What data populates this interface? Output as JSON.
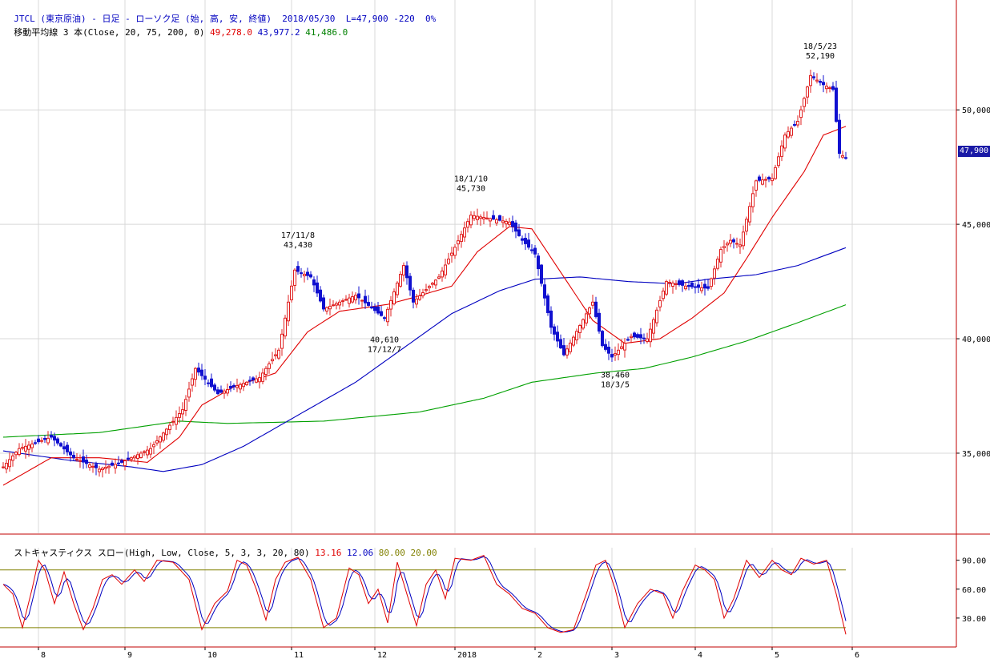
{
  "header": {
    "title": "JTCL (東京原油) - 日足 - ローソク足 (始, 高, 安, 終値)",
    "date": "2018/05/30",
    "last": "L=47,900",
    "change": "-220",
    "pct": "0%"
  },
  "ma_line": {
    "label": "移動平均線 3 本(Close, 20, 75, 200, 0)",
    "v20": "49,278.0",
    "v75": "43,977.2",
    "v200": "41,486.0"
  },
  "stoch_line": {
    "label": "ストキャスティクス スロー(High, Low, Close, 5, 3, 3, 20, 80)",
    "k": "13.16",
    "d": "12.06",
    "upper": "80.00",
    "lower": "20.00"
  },
  "price_tag": "47,900",
  "colors": {
    "up": "#e02020",
    "down": "#1010d0",
    "ma20": "#e00000",
    "ma75": "#0000c0",
    "ma200": "#00a000",
    "stoch_k": "#e00000",
    "stoch_d": "#0000c0",
    "band": "#808000",
    "divider": "#c00000",
    "grid": "#d8d8d8",
    "text_blue": "#0000c0",
    "text_red": "#e00000",
    "text_green": "#008000",
    "text_olive": "#808000"
  },
  "chart_data": {
    "type": "candlestick",
    "y_ticks": [
      "35,000",
      "40,000",
      "45,000",
      "50,000"
    ],
    "ylim": [
      31500,
      54800
    ],
    "x_labels": [
      "8",
      "9",
      "10",
      "11",
      "12",
      "2018",
      "2",
      "3",
      "4",
      "5",
      "6"
    ],
    "keypoints": [
      [
        0,
        34400
      ],
      [
        5,
        35200
      ],
      [
        15,
        35700
      ],
      [
        22,
        34800
      ],
      [
        30,
        34300
      ],
      [
        37,
        34600
      ],
      [
        46,
        35200
      ],
      [
        56,
        36900
      ],
      [
        60,
        38700
      ],
      [
        67,
        37600
      ],
      [
        72,
        37900
      ],
      [
        80,
        38300
      ],
      [
        86,
        39500
      ],
      [
        91,
        43000
      ],
      [
        96,
        42700
      ],
      [
        100,
        41300
      ],
      [
        110,
        41900
      ],
      [
        119,
        40900
      ],
      [
        125,
        43200
      ],
      [
        128,
        41600
      ],
      [
        136,
        42700
      ],
      [
        141,
        44000
      ],
      [
        146,
        45400
      ],
      [
        158,
        45100
      ],
      [
        162,
        44300
      ],
      [
        166,
        43700
      ],
      [
        171,
        40500
      ],
      [
        175,
        39300
      ],
      [
        184,
        41600
      ],
      [
        187,
        39700
      ],
      [
        190,
        39200
      ],
      [
        196,
        40100
      ],
      [
        201,
        40000
      ],
      [
        207,
        42500
      ],
      [
        213,
        42300
      ],
      [
        220,
        42200
      ],
      [
        224,
        43900
      ],
      [
        227,
        44300
      ],
      [
        230,
        44100
      ],
      [
        235,
        46900
      ],
      [
        240,
        47000
      ],
      [
        244,
        48900
      ],
      [
        248,
        49500
      ],
      [
        252,
        51500
      ],
      [
        256,
        51100
      ],
      [
        259,
        50900
      ],
      [
        261,
        48100
      ],
      [
        263,
        47900
      ]
    ],
    "ma20_keys": [
      [
        0,
        33600
      ],
      [
        15,
        34800
      ],
      [
        30,
        34800
      ],
      [
        45,
        34600
      ],
      [
        55,
        35700
      ],
      [
        62,
        37100
      ],
      [
        72,
        37900
      ],
      [
        85,
        38500
      ],
      [
        95,
        40300
      ],
      [
        105,
        41200
      ],
      [
        120,
        41500
      ],
      [
        128,
        41800
      ],
      [
        140,
        42300
      ],
      [
        148,
        43800
      ],
      [
        158,
        44900
      ],
      [
        165,
        44800
      ],
      [
        175,
        42700
      ],
      [
        184,
        40800
      ],
      [
        194,
        39800
      ],
      [
        205,
        40000
      ],
      [
        215,
        40900
      ],
      [
        225,
        42000
      ],
      [
        232,
        43500
      ],
      [
        240,
        45300
      ],
      [
        250,
        47300
      ],
      [
        256,
        48900
      ],
      [
        263,
        49278
      ]
    ],
    "ma75_keys": [
      [
        0,
        35100
      ],
      [
        20,
        34700
      ],
      [
        40,
        34400
      ],
      [
        50,
        34200
      ],
      [
        62,
        34500
      ],
      [
        75,
        35300
      ],
      [
        90,
        36500
      ],
      [
        110,
        38100
      ],
      [
        125,
        39600
      ],
      [
        140,
        41100
      ],
      [
        155,
        42100
      ],
      [
        166,
        42600
      ],
      [
        180,
        42700
      ],
      [
        195,
        42500
      ],
      [
        210,
        42400
      ],
      [
        220,
        42600
      ],
      [
        235,
        42800
      ],
      [
        248,
        43200
      ],
      [
        263,
        43977
      ]
    ],
    "ma200_keys": [
      [
        0,
        35700
      ],
      [
        30,
        35900
      ],
      [
        55,
        36400
      ],
      [
        70,
        36300
      ],
      [
        100,
        36400
      ],
      [
        130,
        36800
      ],
      [
        150,
        37400
      ],
      [
        165,
        38100
      ],
      [
        185,
        38500
      ],
      [
        200,
        38700
      ],
      [
        215,
        39200
      ],
      [
        232,
        39900
      ],
      [
        248,
        40700
      ],
      [
        263,
        41486
      ]
    ],
    "stoch_keys": [
      [
        0,
        65
      ],
      [
        3,
        55
      ],
      [
        6,
        20
      ],
      [
        9,
        60
      ],
      [
        11,
        90
      ],
      [
        13,
        80
      ],
      [
        16,
        45
      ],
      [
        19,
        78
      ],
      [
        22,
        45
      ],
      [
        25,
        18
      ],
      [
        28,
        40
      ],
      [
        31,
        70
      ],
      [
        34,
        75
      ],
      [
        37,
        65
      ],
      [
        41,
        80
      ],
      [
        44,
        68
      ],
      [
        48,
        90
      ],
      [
        53,
        88
      ],
      [
        58,
        70
      ],
      [
        62,
        18
      ],
      [
        66,
        45
      ],
      [
        70,
        58
      ],
      [
        73,
        90
      ],
      [
        76,
        85
      ],
      [
        79,
        60
      ],
      [
        82,
        28
      ],
      [
        85,
        70
      ],
      [
        88,
        88
      ],
      [
        92,
        93
      ],
      [
        96,
        70
      ],
      [
        100,
        20
      ],
      [
        104,
        30
      ],
      [
        108,
        82
      ],
      [
        111,
        75
      ],
      [
        114,
        45
      ],
      [
        117,
        60
      ],
      [
        120,
        25
      ],
      [
        123,
        88
      ],
      [
        126,
        55
      ],
      [
        129,
        22
      ],
      [
        132,
        65
      ],
      [
        135,
        80
      ],
      [
        138,
        50
      ],
      [
        141,
        92
      ],
      [
        146,
        90
      ],
      [
        150,
        95
      ],
      [
        154,
        65
      ],
      [
        158,
        55
      ],
      [
        162,
        40
      ],
      [
        166,
        35
      ],
      [
        170,
        20
      ],
      [
        174,
        15
      ],
      [
        178,
        18
      ],
      [
        182,
        55
      ],
      [
        185,
        85
      ],
      [
        188,
        90
      ],
      [
        191,
        60
      ],
      [
        194,
        20
      ],
      [
        198,
        45
      ],
      [
        202,
        60
      ],
      [
        206,
        55
      ],
      [
        209,
        30
      ],
      [
        212,
        58
      ],
      [
        216,
        85
      ],
      [
        219,
        80
      ],
      [
        222,
        70
      ],
      [
        225,
        30
      ],
      [
        228,
        50
      ],
      [
        232,
        90
      ],
      [
        236,
        72
      ],
      [
        240,
        90
      ],
      [
        243,
        80
      ],
      [
        246,
        75
      ],
      [
        249,
        92
      ],
      [
        253,
        86
      ],
      [
        257,
        90
      ],
      [
        260,
        55
      ],
      [
        263,
        13
      ]
    ],
    "annotations": [
      {
        "i": 92,
        "side": "high",
        "date": "17/11/8",
        "value": "43,430"
      },
      {
        "i": 119,
        "side": "low",
        "date": "17/12/7",
        "value": "40,610"
      },
      {
        "i": 146,
        "side": "high",
        "date": "18/1/10",
        "value": "45,730"
      },
      {
        "i": 191,
        "side": "low",
        "date": "18/3/5",
        "value": "38,460"
      },
      {
        "i": 255,
        "side": "high",
        "date": "18/5/23",
        "value": "52,190"
      }
    ],
    "stoch_ticks": [
      "90.00",
      "60.00",
      "30.00"
    ],
    "stoch_ylim": [
      0,
      103
    ],
    "last_close": 47900
  }
}
